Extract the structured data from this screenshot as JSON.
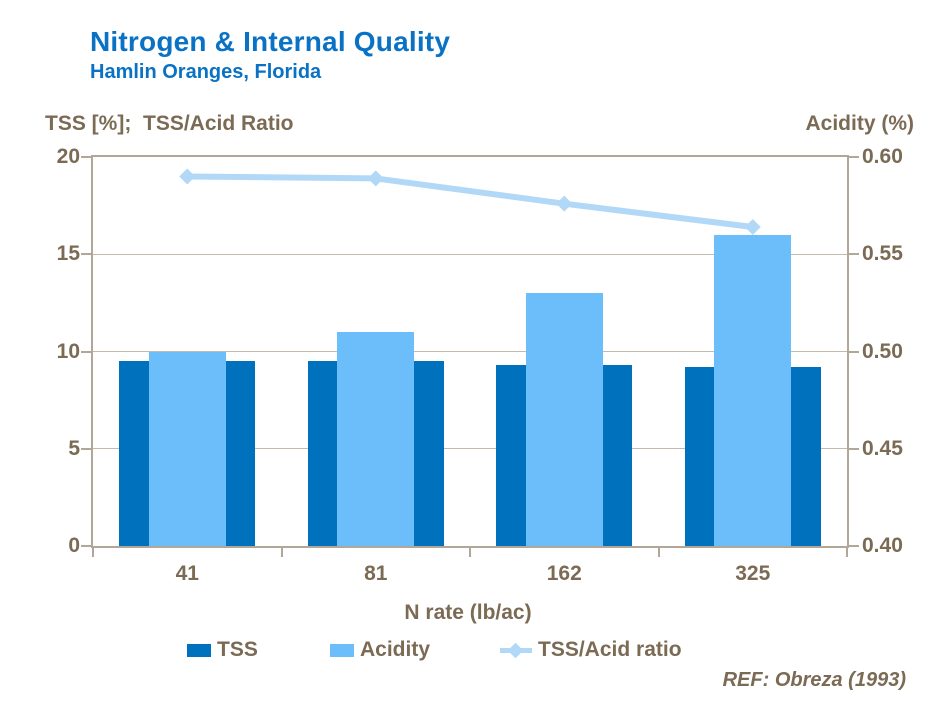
{
  "header": {
    "title": "Nitrogen & Internal Quality",
    "subtitle": "Hamlin Oranges, Florida"
  },
  "axis_titles": {
    "left": "TSS [%];  TSS/Acid Ratio",
    "right": "Acidity (%)"
  },
  "chart_data": {
    "type": "bar",
    "subtype": "overlapped-bars-with-line",
    "title": "Nitrogen & Internal Quality",
    "subtitle": "Hamlin Oranges, Florida",
    "categories": [
      "41",
      "81",
      "162",
      "325"
    ],
    "xlabel": "N rate (lb/ac)",
    "grid": "horizontal",
    "legend_position": "bottom",
    "left_axis": {
      "label": "TSS [%];  TSS/Acid Ratio",
      "min": 0,
      "max": 20,
      "tick_labels": [
        "20",
        "15",
        "10",
        "5",
        "0"
      ]
    },
    "right_axis": {
      "label": "Acidity (%)",
      "min": 0.4,
      "max": 0.6,
      "tick_labels": [
        "0.60",
        "0.55",
        "0.50",
        "0.45",
        "0.40"
      ]
    },
    "series": [
      {
        "name": "TSS",
        "type": "bar",
        "axis": "left",
        "color": "#0071BC",
        "values": [
          9.5,
          9.5,
          9.3,
          9.2
        ]
      },
      {
        "name": "Acidity",
        "type": "bar",
        "axis": "right",
        "color": "#6CBEFA",
        "values": [
          0.5,
          0.51,
          0.53,
          0.56
        ]
      },
      {
        "name": "TSS/Acid ratio",
        "type": "line",
        "axis": "left",
        "color": "#B2D8F8",
        "values": [
          19.0,
          18.9,
          17.6,
          16.4
        ]
      }
    ]
  },
  "footer": {
    "ref": "REF: Obreza (1993)"
  },
  "colors": {
    "title_blue": "#0A72C5",
    "axis_text_brown": "#7B6A54",
    "axis_line_tan": "#B2A698",
    "gridline_tan": "#C3B9AD",
    "tss_bar": "#0071BC",
    "acidity_bar": "#6CBEFA",
    "ratio_line": "#B2D8F8",
    "background": "#FFFFFF"
  }
}
